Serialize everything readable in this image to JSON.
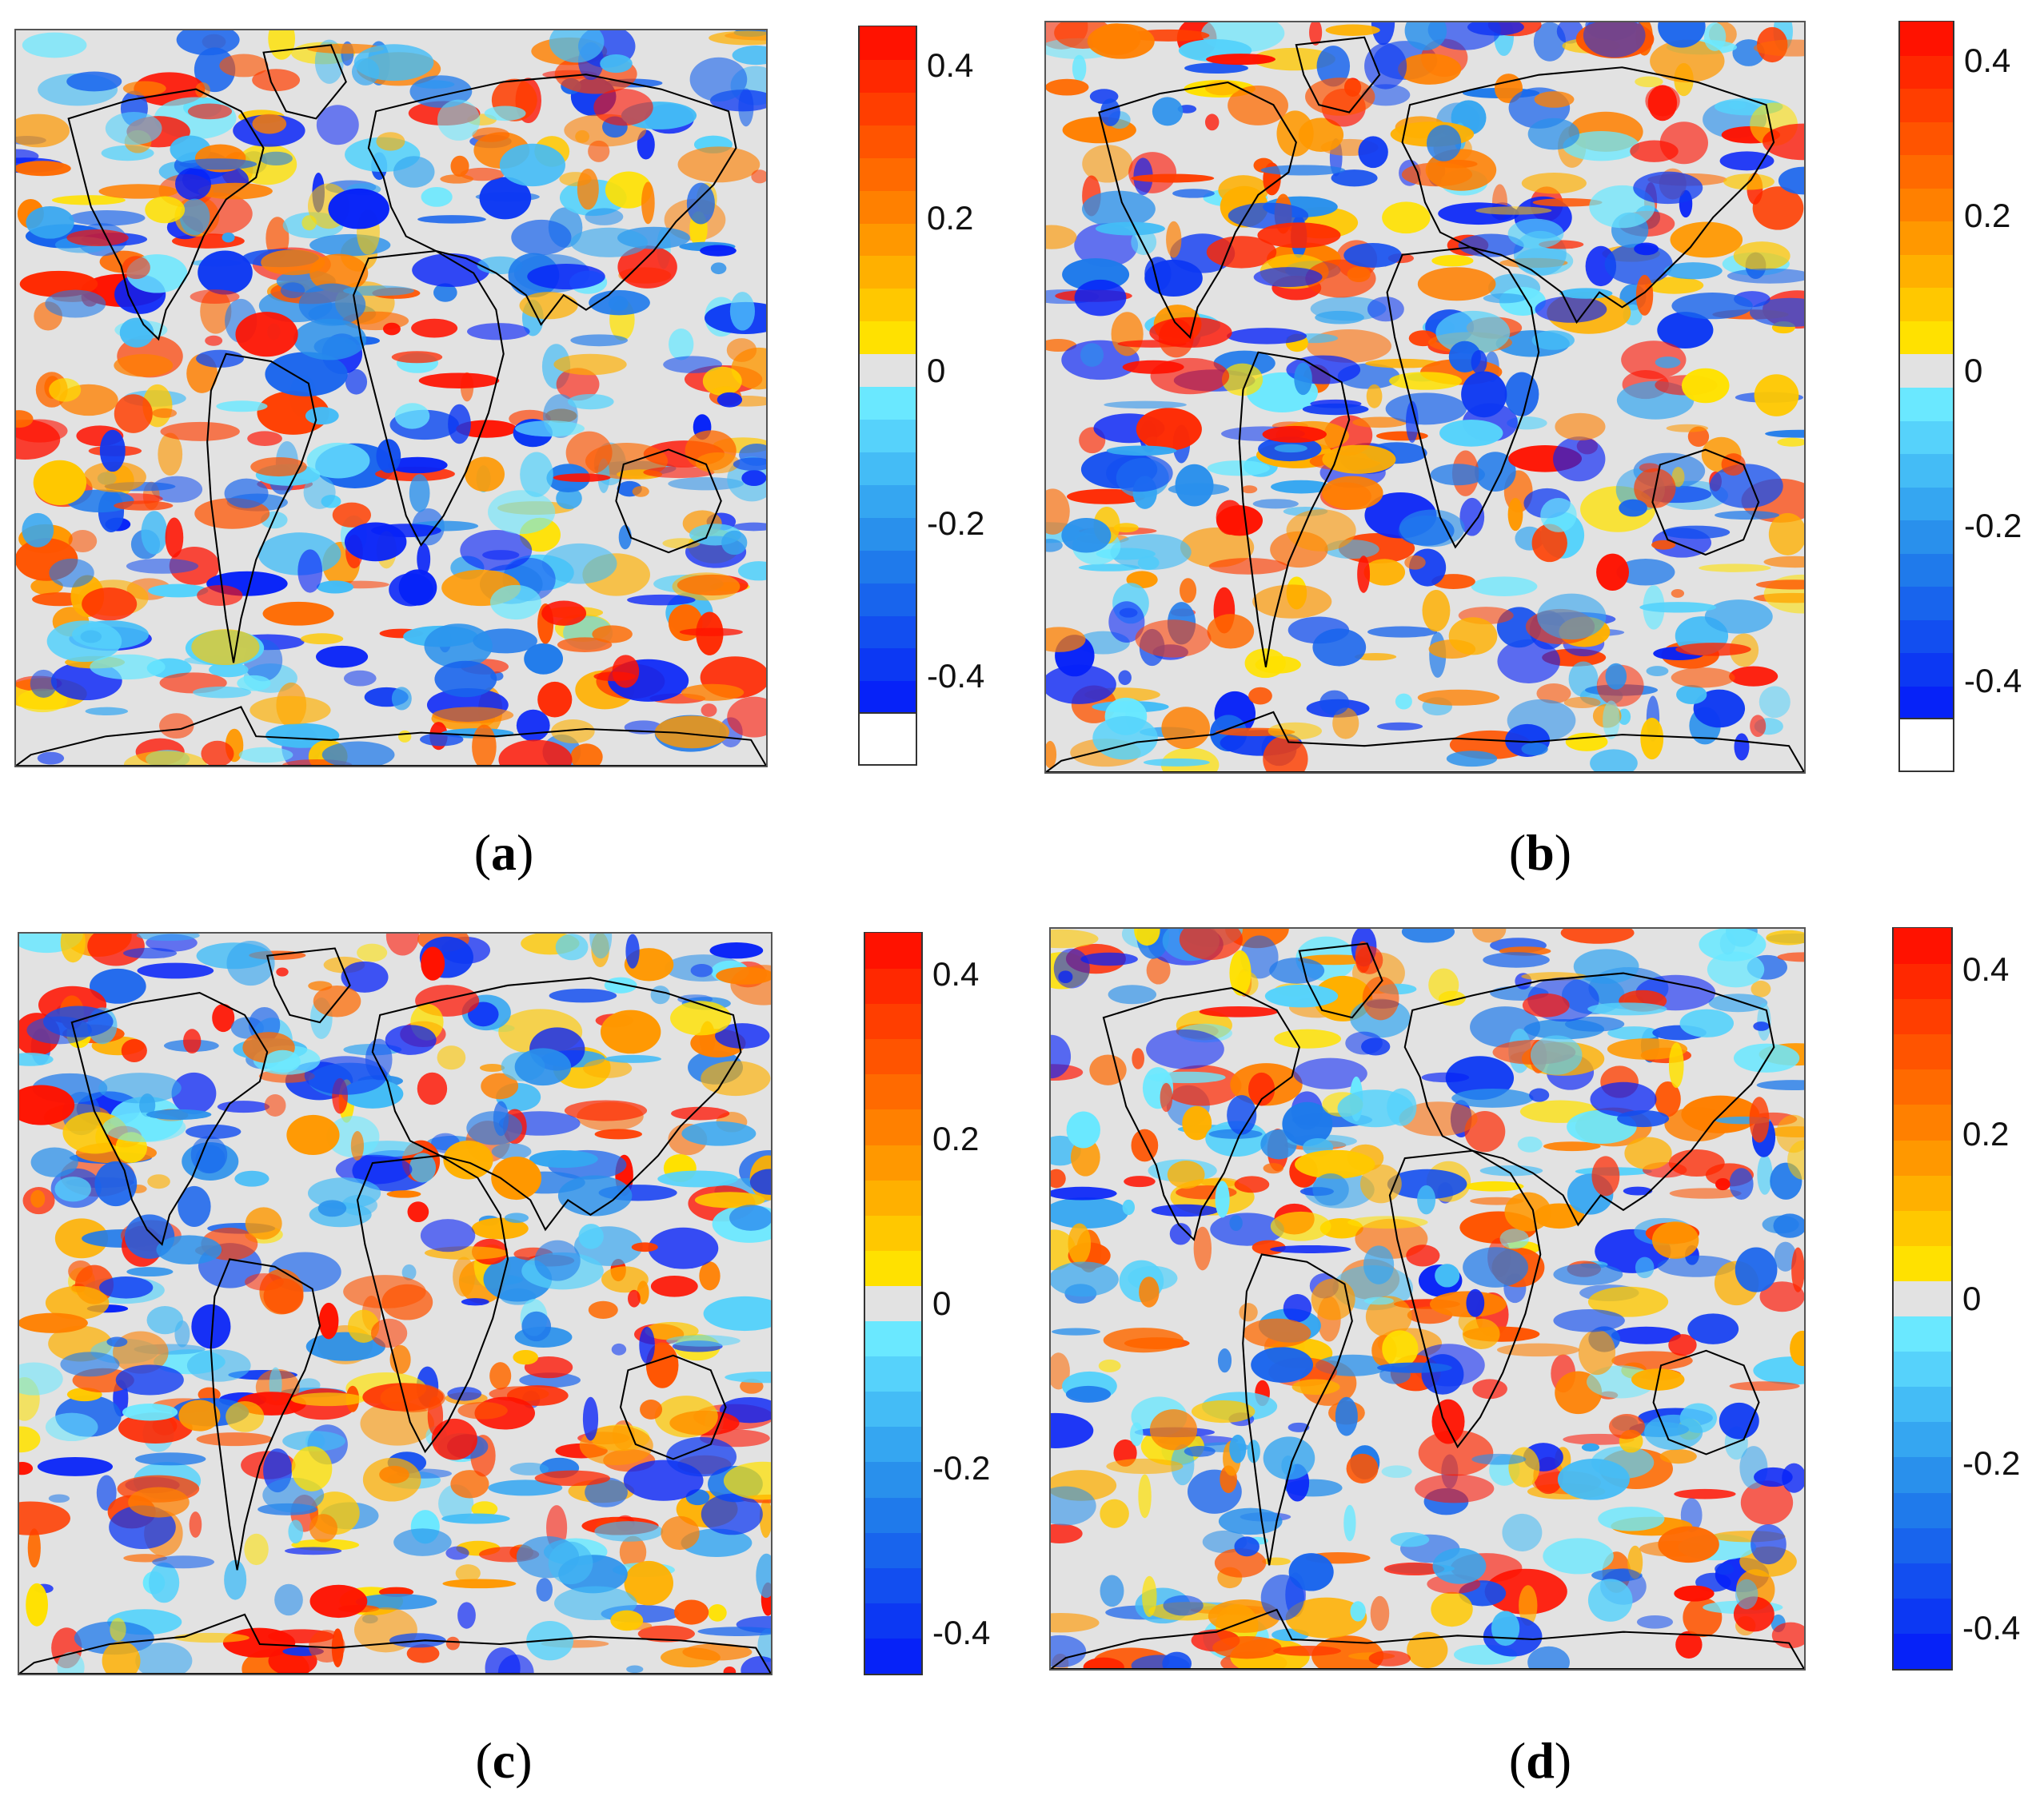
{
  "panels": [
    {
      "id": "a",
      "caption_open": "(",
      "caption_letter": "a",
      "caption_close": ")"
    },
    {
      "id": "b",
      "caption_open": "(",
      "caption_letter": "b",
      "caption_close": ")"
    },
    {
      "id": "c",
      "caption_open": "(",
      "caption_letter": "c",
      "caption_close": ")"
    },
    {
      "id": "d",
      "caption_open": "(",
      "caption_letter": "d",
      "caption_close": ")"
    }
  ],
  "colorbar": {
    "ticks": [
      "0.4",
      "0.2",
      "0",
      "-0.2",
      "-0.4"
    ],
    "range": [
      -0.45,
      0.45
    ],
    "colors_positive": [
      "#ffe100",
      "#ffc800",
      "#ffb000",
      "#ff9800",
      "#ff8000",
      "#ff6a00",
      "#ff5400",
      "#ff3e00",
      "#ff2800",
      "#ff1200"
    ],
    "colors_negative": [
      "#6ae8ff",
      "#56d2fb",
      "#44bcf6",
      "#35a6f1",
      "#2990ec",
      "#1f7aeb",
      "#1864ed",
      "#124ef0",
      "#0c38f3",
      "#0622f8"
    ],
    "zero_color": "#e2e2e2"
  }
}
